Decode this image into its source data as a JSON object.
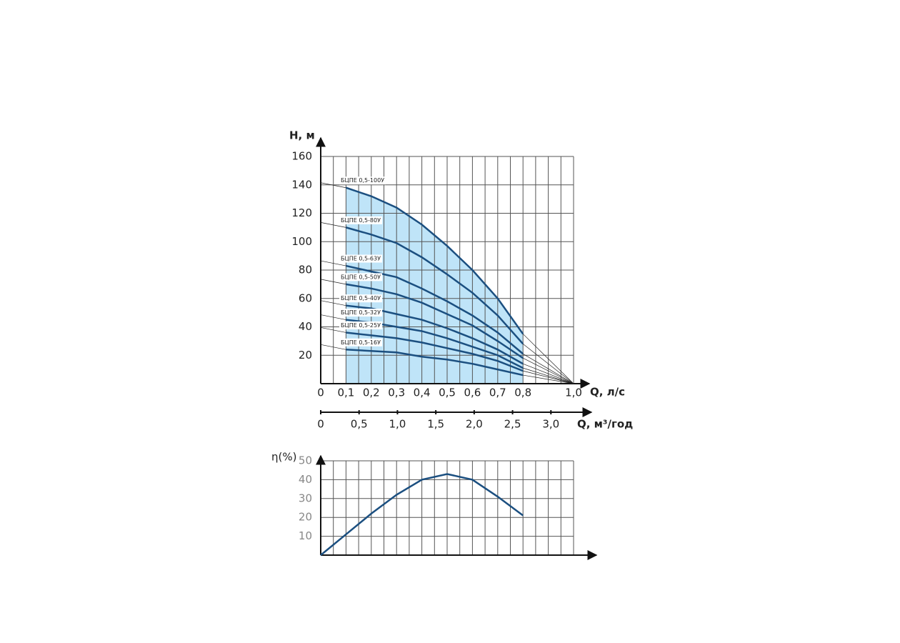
{
  "chart_data": [
    {
      "type": "line",
      "y_label": "H, м",
      "x_label": "Q, л/с",
      "x2_label": "Q, м³/год",
      "x": [
        0.1,
        0.2,
        0.3,
        0.4,
        0.5,
        0.6,
        0.7,
        0.8
      ],
      "series": [
        {
          "name": "БЦПЕ 0,5-100У",
          "color": "#1b4f80",
          "values": [
            138,
            132,
            124,
            112,
            97,
            80,
            60,
            35
          ]
        },
        {
          "name": "БЦПЕ 0,5-80У",
          "color": "#1b4f80",
          "values": [
            110,
            105,
            99,
            89,
            77,
            64,
            48,
            28
          ]
        },
        {
          "name": "БЦПЕ 0,5-63У",
          "color": "#1b4f80",
          "values": [
            83,
            79,
            75,
            67,
            58,
            48,
            36,
            21
          ]
        },
        {
          "name": "БЦПЕ 0,5-50У",
          "color": "#1b4f80",
          "values": [
            70,
            67,
            63,
            57,
            49,
            41,
            30,
            18
          ]
        },
        {
          "name": "БЦПЕ 0,5-40У",
          "color": "#1b4f80",
          "values": [
            55,
            53,
            49,
            45,
            39,
            32,
            24,
            14
          ]
        },
        {
          "name": "БЦПЕ 0,5-32У",
          "color": "#1b4f80",
          "values": [
            45,
            43,
            40,
            37,
            32,
            26,
            20,
            11
          ]
        },
        {
          "name": "БЦПЕ 0,5-25У",
          "color": "#1b4f80",
          "values": [
            36,
            34,
            32,
            29,
            25,
            21,
            16,
            9
          ]
        },
        {
          "name": "БЦПЕ 0,5-16У",
          "color": "#1b4f80",
          "values": [
            24,
            23,
            22,
            19,
            17,
            14,
            10,
            6
          ]
        }
      ],
      "fill_color": "#bfe4f8",
      "xlim": [
        0,
        1.0
      ],
      "xticks": [
        0,
        {
          "value": 0.1,
          "label": "0,1"
        },
        {
          "value": 0.2,
          "label": "0,2"
        },
        {
          "value": 0.3,
          "label": "0,3"
        },
        {
          "value": 0.4,
          "label": "0,4"
        },
        {
          "value": 0.5,
          "label": "0,5"
        },
        {
          "value": 0.6,
          "label": "0,6"
        },
        {
          "value": 0.7,
          "label": "0,7"
        },
        {
          "value": 0.8,
          "label": "0,8"
        },
        {
          "value": 1.0,
          "label": "1,0"
        }
      ],
      "x_minor_ticks": [
        0.05,
        0.15,
        0.25,
        0.35,
        0.45,
        0.55,
        0.65,
        0.75,
        0.85,
        0.9,
        0.95
      ],
      "x2lim": [
        0,
        3.5
      ],
      "x2ticks": [
        0,
        {
          "value": 0.5,
          "label": "0,5"
        },
        {
          "value": 1.0,
          "label": "1,0"
        },
        {
          "value": 1.5,
          "label": "1,5"
        },
        {
          "value": 2.0,
          "label": "2,0"
        },
        {
          "value": 2.5,
          "label": "2,5"
        },
        {
          "value": 3.0,
          "label": "3,0"
        }
      ],
      "ylim": [
        0,
        160
      ],
      "yticks": [
        20,
        40,
        60,
        80,
        100,
        120,
        140,
        160
      ],
      "grid": true
    },
    {
      "type": "line",
      "y_label": "η(%)",
      "x": [
        0,
        0.1,
        0.2,
        0.3,
        0.4,
        0.5,
        0.6,
        0.7,
        0.8
      ],
      "series": [
        {
          "color": "#1b4f80",
          "values": [
            0,
            11,
            22,
            32,
            40,
            43,
            40,
            31,
            21
          ]
        }
      ],
      "xlim": [
        0,
        1.0
      ],
      "xticks": [
        0,
        0.1,
        0.2,
        0.3,
        0.4,
        0.5,
        0.6,
        0.7,
        0.8,
        0.9,
        1.0
      ],
      "x_minor_ticks": [
        0.05,
        0.15,
        0.25,
        0.35,
        0.45,
        0.55,
        0.65,
        0.75,
        0.85,
        0.95
      ],
      "ylim": [
        0,
        50
      ],
      "yticks": [
        10,
        20,
        30,
        40,
        50
      ],
      "grid": true
    }
  ]
}
